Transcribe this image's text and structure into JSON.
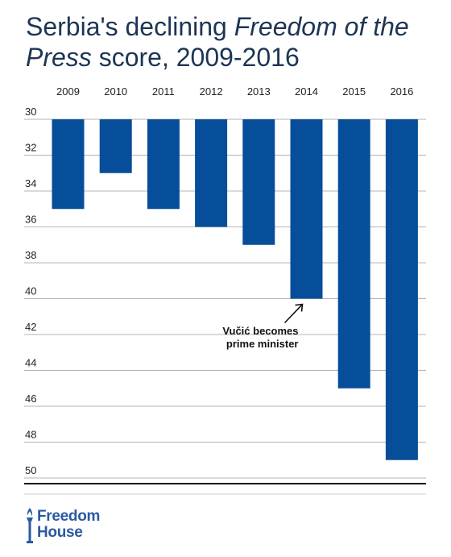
{
  "title": {
    "part1": "Serbia's declining ",
    "italic": "Freedom of the Press",
    "part2": " score, 2009-2016"
  },
  "chart_data": {
    "type": "bar",
    "title": "Serbia's declining Freedom of the Press score, 2009-2016",
    "categories": [
      "2009",
      "2010",
      "2011",
      "2012",
      "2013",
      "2014",
      "2015",
      "2016"
    ],
    "values": [
      35,
      33,
      35,
      36,
      37,
      40,
      45,
      49
    ],
    "ylim": [
      30,
      50
    ],
    "yticks": [
      30,
      32,
      34,
      36,
      38,
      40,
      42,
      44,
      46,
      48,
      50
    ],
    "y_inverted": true,
    "grid": true,
    "bar_color": "#064e9a",
    "annotation": {
      "line1": "Vučić becomes",
      "line2": "prime minister",
      "category": "2014"
    }
  },
  "logo": {
    "line1": "Freedom",
    "line2": "House",
    "color": "#2b5aa0"
  }
}
